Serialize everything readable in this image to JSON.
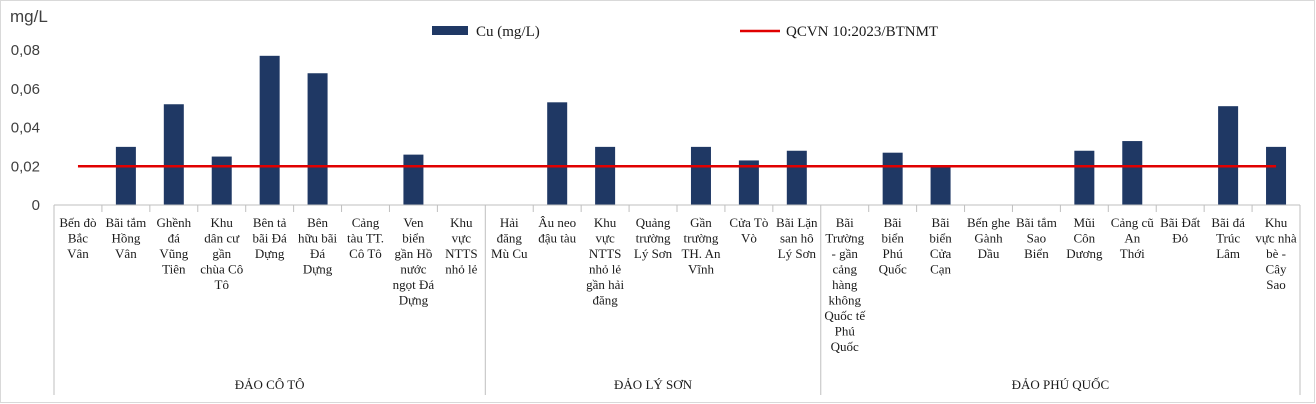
{
  "chart_data": {
    "type": "bar",
    "ylabel": "mg/L",
    "ylim": [
      0,
      0.08
    ],
    "yticks": [
      "0",
      "0,02",
      "0,04",
      "0,06",
      "0,08"
    ],
    "ytick_values": [
      0,
      0.02,
      0.04,
      0.06,
      0.08
    ],
    "grid": false,
    "legend_position": "top",
    "bar_color": "#1f3864",
    "line_color": "#e00000",
    "series": [
      {
        "name": "Cu (mg/L)",
        "type": "bar",
        "values": [
          null,
          0.03,
          0.052,
          0.025,
          0.077,
          0.068,
          null,
          0.026,
          null,
          null,
          0.053,
          0.03,
          null,
          0.03,
          0.023,
          0.028,
          null,
          0.027,
          0.02,
          null,
          null,
          0.028,
          0.033,
          null,
          0.051,
          0.03
        ]
      },
      {
        "name": "QCVN 10:2023/BTNMT",
        "type": "line",
        "value": 0.02
      }
    ],
    "categories": [
      [
        "Bến đò",
        "Bắc",
        "Vân"
      ],
      [
        "Bãi tắm",
        "Hồng",
        "Vân"
      ],
      [
        "Ghềnh",
        "đá",
        "Vũng",
        "Tiên"
      ],
      [
        "Khu",
        "dân cư",
        "gần",
        "chùa Cô",
        "Tô"
      ],
      [
        "Bên tả",
        "bãi Đá",
        "Dựng"
      ],
      [
        "Bên",
        "hữu bãi",
        "Đá",
        "Dựng"
      ],
      [
        "Cảng",
        "tàu TT.",
        "Cô Tô"
      ],
      [
        "Ven",
        "biển",
        "gần Hồ",
        "nước",
        "ngọt Đá",
        "Dựng"
      ],
      [
        "Khu",
        "vực",
        "NTTS",
        "nhỏ lẻ"
      ],
      [
        "Hải",
        "đăng",
        "Mù Cu"
      ],
      [
        "Âu neo",
        "đậu tàu"
      ],
      [
        "Khu",
        "vực",
        "NTTS",
        "nhỏ lẻ",
        "gần hải",
        "đăng"
      ],
      [
        "Quảng",
        "trường",
        "Lý Sơn"
      ],
      [
        "Gần",
        "trường",
        "TH. An",
        "Vĩnh"
      ],
      [
        "Cửa Tò",
        "Vò"
      ],
      [
        "Bãi Lặn",
        "san hô",
        "Lý Sơn"
      ],
      [
        "Bãi",
        "Trường",
        "- gần",
        "cảng",
        "hàng",
        "không",
        "Quốc tế",
        "Phú",
        "Quốc"
      ],
      [
        "Bãi",
        "biển",
        "Phú",
        "Quốc"
      ],
      [
        "Bãi",
        "biển",
        "Cửa",
        "Cạn"
      ],
      [
        "Bến ghe",
        "Gành",
        "Dầu"
      ],
      [
        "Bãi tắm",
        "Sao",
        "Biển"
      ],
      [
        "Mũi",
        "Côn",
        "Dương"
      ],
      [
        "Cảng cũ",
        "An",
        "Thới"
      ],
      [
        "Bãi Đất",
        "Đỏ"
      ],
      [
        "Bãi đá",
        "Trúc",
        "Lâm"
      ],
      [
        "Khu",
        "vực nhà",
        "bè -",
        "Cây",
        "Sao"
      ]
    ],
    "groups": [
      {
        "label": "ĐẢO CÔ TÔ",
        "count": 9
      },
      {
        "label": "ĐẢO LÝ SƠN",
        "count": 7
      },
      {
        "label": "ĐẢO PHÚ QUỐC",
        "count": 10
      }
    ]
  }
}
